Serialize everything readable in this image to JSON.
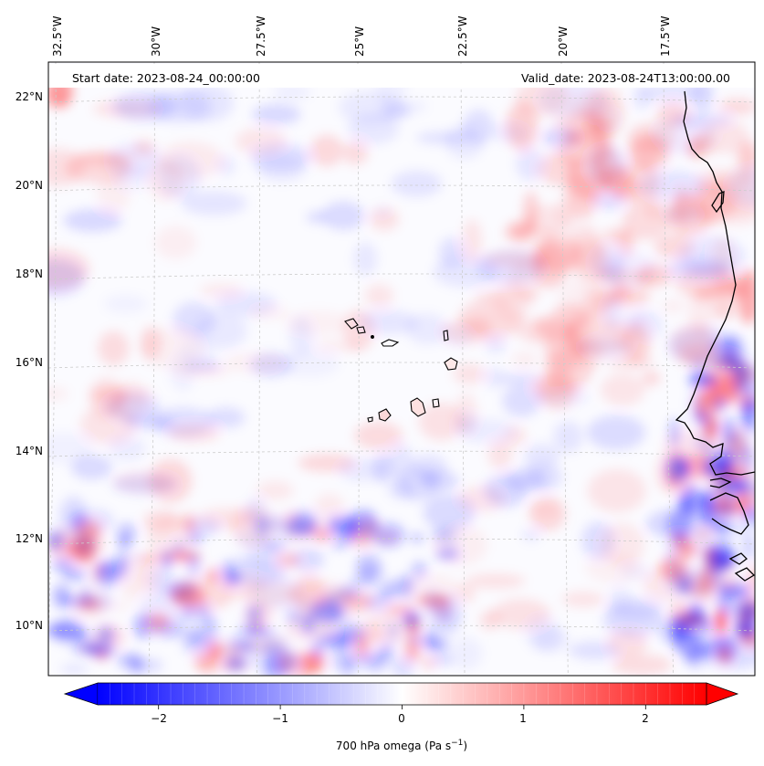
{
  "map": {
    "start_date_text": "Start date: 2023-08-24_00:00:00",
    "valid_date_text": "Valid_date: 2023-08-24T13:00:00.00",
    "gridlines": "dashed",
    "lon_labels": [
      "32.5°W",
      "30°W",
      "27.5°W",
      "25°W",
      "22.5°W",
      "20°W",
      "17.5°W"
    ],
    "lat_labels": [
      "22°N",
      "20°N",
      "18°N",
      "16°N",
      "14°N",
      "12°N",
      "10°N"
    ],
    "lon_range_deg_w": [
      32.5,
      15.5
    ],
    "lat_range_deg_n": [
      9.0,
      22.7
    ],
    "colors": {
      "negative_max": "#0000ff",
      "zero": "#ffffff",
      "positive_max": "#ff0000",
      "coastline": "#000000",
      "gridline": "#cccccc"
    },
    "icons": [
      "coastline-africa",
      "cape-verde-islands"
    ]
  },
  "colorbar": {
    "label_text": "700 hPa omega (Pa s",
    "label_sup": "−1",
    "label_close": ")",
    "ticks": [
      "−2",
      "−1",
      "0",
      "1",
      "2"
    ],
    "range": [
      -2.5,
      2.5
    ],
    "extend": "both",
    "colormap": "bwr"
  }
}
